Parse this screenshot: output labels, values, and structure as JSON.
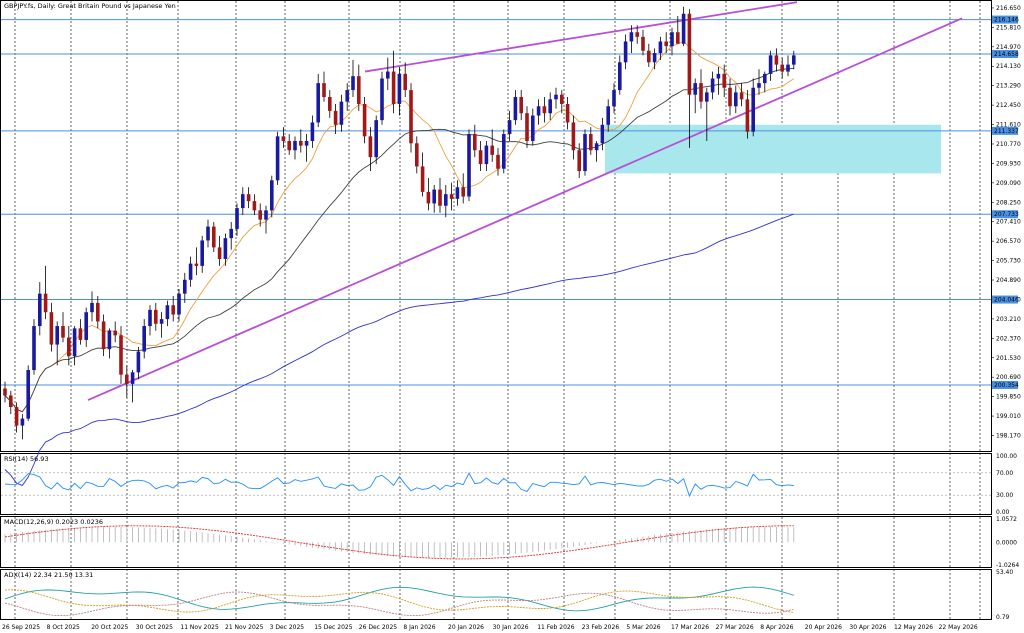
{
  "window": {
    "title": "GBPJPY.fs, Daily:  Great Britain Pound vs Japanese Yen"
  },
  "chart_data": [
    {
      "type": "candlestick",
      "title": "GBPJPY.fs, Daily:  Great Britain Pound vs Japanese Yen",
      "ylim": [
        197.5,
        216.95
      ],
      "y_ticks": [
        "216.650",
        "215.810",
        "214.970",
        "214.130",
        "213.290",
        "212.450",
        "211.610",
        "210.770",
        "209.930",
        "209.090",
        "208.250",
        "207.410",
        "206.570",
        "205.730",
        "204.890",
        "204.050",
        "203.210",
        "202.370",
        "201.530",
        "200.690",
        "199.850",
        "199.010",
        "198.170"
      ],
      "x_ticks": [
        "26 Sep 2025",
        "8 Oct 2025",
        "20 Oct 2025",
        "30 Oct 2025",
        "11 Nov 2025",
        "21 Nov 2025",
        "3 Dec 2025",
        "15 Dec 2025",
        "26 Dec 2025",
        "8 Jan 2026",
        "20 Jan 2026",
        "30 Jan 2026",
        "11 Feb 2026",
        "23 Feb 2026",
        "5 Mar 2026",
        "17 Mar 2026",
        "27 Mar 2026",
        "8 Apr 2026",
        "20 Apr 2026",
        "30 Apr 2026",
        "12 May 2026",
        "22 May 2026"
      ],
      "horizontal_levels": [
        {
          "value": 216.146,
          "label": "216.146"
        },
        {
          "value": 214.658,
          "label": "214.658"
        },
        {
          "value": 211.337,
          "label": "211.337"
        },
        {
          "value": 207.733,
          "label": "207.733"
        },
        {
          "value": 204.046,
          "label": "204.046"
        },
        {
          "value": 200.354,
          "label": "200.354"
        }
      ],
      "support_zone": {
        "from": 209.5,
        "to": 211.6,
        "color": "#a8e8ec"
      },
      "trendlines": [
        {
          "name": "rising wedge lower",
          "color": "#b84fd6"
        },
        {
          "name": "rising wedge upper",
          "color": "#b84fd6"
        }
      ],
      "moving_averages": [
        {
          "color": "#f0a040"
        },
        {
          "color": "#404040"
        },
        {
          "color": "#3030d0"
        }
      ],
      "bull_color": "#1a1aa0",
      "bear_color": "#a01818",
      "candles": [
        [
          200.2,
          200.5,
          199.6,
          199.9
        ],
        [
          199.9,
          200.1,
          199.1,
          199.4
        ],
        [
          199.4,
          199.6,
          198.3,
          198.6
        ],
        [
          198.6,
          199.1,
          198.0,
          198.9
        ],
        [
          198.9,
          201.2,
          198.8,
          201.0
        ],
        [
          201.0,
          203.2,
          200.8,
          202.9
        ],
        [
          202.9,
          204.8,
          202.5,
          204.3
        ],
        [
          204.3,
          205.5,
          203.2,
          203.5
        ],
        [
          203.5,
          203.9,
          201.8,
          202.1
        ],
        [
          202.1,
          203.1,
          201.2,
          202.9
        ],
        [
          202.9,
          203.5,
          202.2,
          202.4
        ],
        [
          202.4,
          202.9,
          201.2,
          201.6
        ],
        [
          201.6,
          202.9,
          201.2,
          202.8
        ],
        [
          202.8,
          203.2,
          202.1,
          202.3
        ],
        [
          202.3,
          203.7,
          202.0,
          203.5
        ],
        [
          203.5,
          204.4,
          203.1,
          203.9
        ],
        [
          203.9,
          204.2,
          202.8,
          203.1
        ],
        [
          203.1,
          203.4,
          201.6,
          201.9
        ],
        [
          201.9,
          202.8,
          201.5,
          202.7
        ],
        [
          202.7,
          203.1,
          202.2,
          202.5
        ],
        [
          202.5,
          202.9,
          200.4,
          200.8
        ],
        [
          200.8,
          201.2,
          199.8,
          200.4
        ],
        [
          200.4,
          201.0,
          199.6,
          200.9
        ],
        [
          200.9,
          202.0,
          200.6,
          201.8
        ],
        [
          201.8,
          203.2,
          201.5,
          202.9
        ],
        [
          202.9,
          203.8,
          202.5,
          203.6
        ],
        [
          203.6,
          203.9,
          202.7,
          203.0
        ],
        [
          203.0,
          203.5,
          202.4,
          203.2
        ],
        [
          203.2,
          204.0,
          202.9,
          203.8
        ],
        [
          203.8,
          204.2,
          203.1,
          203.4
        ],
        [
          203.4,
          204.5,
          203.1,
          204.3
        ],
        [
          204.3,
          205.2,
          203.9,
          204.9
        ],
        [
          204.9,
          205.9,
          204.6,
          205.6
        ],
        [
          205.6,
          206.3,
          205.1,
          205.5
        ],
        [
          205.5,
          206.8,
          205.2,
          206.6
        ],
        [
          206.6,
          207.5,
          206.3,
          207.2
        ],
        [
          207.2,
          207.4,
          206.1,
          206.3
        ],
        [
          206.3,
          206.8,
          205.5,
          205.8
        ],
        [
          205.8,
          206.9,
          205.5,
          206.7
        ],
        [
          206.7,
          207.4,
          206.2,
          207.1
        ],
        [
          207.1,
          208.2,
          206.8,
          208.0
        ],
        [
          208.0,
          208.9,
          207.7,
          208.6
        ],
        [
          208.6,
          208.9,
          208.0,
          208.3
        ],
        [
          208.3,
          208.6,
          207.7,
          207.9
        ],
        [
          207.9,
          208.2,
          207.2,
          207.5
        ],
        [
          207.5,
          208.1,
          206.9,
          207.9
        ],
        [
          207.9,
          209.4,
          207.6,
          209.2
        ],
        [
          209.2,
          211.3,
          209.0,
          211.1
        ],
        [
          211.1,
          211.5,
          210.6,
          210.9
        ],
        [
          210.9,
          211.2,
          210.3,
          210.5
        ],
        [
          210.5,
          211.1,
          210.1,
          210.9
        ],
        [
          210.9,
          211.4,
          210.4,
          210.7
        ],
        [
          210.7,
          211.2,
          210.0,
          210.9
        ],
        [
          210.9,
          212.0,
          210.6,
          211.7
        ],
        [
          211.7,
          213.8,
          211.5,
          213.4
        ],
        [
          213.4,
          213.9,
          212.6,
          212.8
        ],
        [
          212.8,
          213.1,
          211.9,
          212.2
        ],
        [
          212.2,
          212.5,
          211.2,
          211.6
        ],
        [
          211.6,
          212.9,
          211.3,
          212.6
        ],
        [
          212.6,
          213.4,
          212.2,
          213.1
        ],
        [
          213.1,
          214.4,
          212.8,
          213.7
        ],
        [
          213.7,
          214.2,
          212.2,
          212.5
        ],
        [
          212.5,
          212.8,
          210.8,
          211.1
        ],
        [
          211.1,
          211.5,
          209.6,
          210.2
        ],
        [
          210.2,
          212.0,
          209.9,
          211.8
        ],
        [
          211.8,
          213.9,
          211.6,
          213.6
        ],
        [
          213.6,
          214.5,
          213.1,
          213.9
        ],
        [
          213.9,
          214.8,
          212.1,
          212.5
        ],
        [
          212.5,
          214.1,
          212.0,
          213.8
        ],
        [
          213.8,
          214.3,
          212.8,
          213.1
        ],
        [
          213.1,
          213.4,
          210.4,
          210.8
        ],
        [
          210.8,
          211.1,
          209.5,
          209.8
        ],
        [
          209.8,
          210.4,
          208.5,
          208.7
        ],
        [
          208.7,
          209.3,
          207.9,
          208.2
        ],
        [
          208.2,
          209.0,
          207.8,
          208.8
        ],
        [
          208.8,
          209.3,
          207.8,
          208.1
        ],
        [
          208.1,
          209.0,
          207.6,
          208.6
        ],
        [
          208.6,
          209.1,
          207.9,
          208.4
        ],
        [
          208.4,
          209.2,
          208.1,
          208.9
        ],
        [
          208.9,
          209.5,
          208.2,
          208.5
        ],
        [
          208.5,
          211.4,
          208.3,
          211.2
        ],
        [
          211.2,
          211.6,
          210.2,
          210.5
        ],
        [
          210.5,
          210.9,
          209.6,
          209.9
        ],
        [
          209.9,
          210.9,
          209.6,
          210.7
        ],
        [
          210.7,
          211.4,
          210.0,
          210.3
        ],
        [
          210.3,
          210.6,
          209.4,
          209.7
        ],
        [
          209.7,
          211.4,
          209.5,
          211.2
        ],
        [
          211.2,
          212.2,
          210.9,
          211.8
        ],
        [
          211.8,
          213.1,
          211.6,
          212.8
        ],
        [
          212.8,
          213.1,
          211.8,
          212.1
        ],
        [
          212.1,
          212.4,
          210.6,
          210.9
        ],
        [
          210.9,
          212.3,
          210.7,
          212.0
        ],
        [
          212.0,
          212.7,
          211.6,
          212.4
        ],
        [
          212.4,
          212.8,
          211.7,
          212.1
        ],
        [
          212.1,
          213.0,
          211.8,
          212.7
        ],
        [
          212.7,
          213.2,
          212.3,
          212.9
        ],
        [
          212.9,
          213.1,
          212.1,
          212.5
        ],
        [
          212.5,
          212.8,
          211.4,
          211.7
        ],
        [
          211.7,
          212.0,
          210.1,
          210.5
        ],
        [
          210.5,
          210.8,
          209.3,
          209.6
        ],
        [
          209.6,
          211.4,
          209.4,
          211.2
        ],
        [
          211.2,
          211.5,
          210.3,
          210.5
        ],
        [
          210.5,
          210.9,
          210.0,
          210.8
        ],
        [
          210.8,
          211.9,
          210.5,
          211.6
        ],
        [
          211.6,
          212.7,
          211.3,
          212.4
        ],
        [
          212.4,
          213.4,
          212.1,
          213.1
        ],
        [
          213.1,
          214.6,
          212.9,
          214.3
        ],
        [
          214.3,
          215.5,
          214.0,
          215.2
        ],
        [
          215.2,
          215.9,
          214.7,
          215.6
        ],
        [
          215.6,
          215.9,
          215.1,
          215.4
        ],
        [
          215.4,
          215.7,
          214.6,
          214.8
        ],
        [
          214.8,
          215.1,
          214.1,
          214.3
        ],
        [
          214.3,
          214.9,
          214.0,
          214.7
        ],
        [
          214.7,
          215.4,
          214.4,
          215.2
        ],
        [
          215.2,
          215.6,
          214.7,
          215.0
        ],
        [
          215.0,
          215.8,
          214.6,
          215.6
        ],
        [
          215.6,
          216.3,
          215.2,
          215.1
        ],
        [
          215.1,
          216.7,
          215.0,
          216.4
        ],
        [
          216.4,
          216.6,
          210.6,
          212.9
        ],
        [
          212.9,
          213.6,
          212.1,
          213.4
        ],
        [
          213.4,
          214.0,
          212.3,
          212.6
        ],
        [
          212.6,
          213.2,
          210.9,
          213.0
        ],
        [
          213.0,
          213.9,
          212.7,
          213.6
        ],
        [
          213.6,
          214.1,
          212.9,
          213.8
        ],
        [
          213.8,
          214.2,
          212.8,
          213.2
        ],
        [
          213.2,
          213.6,
          212.0,
          212.4
        ],
        [
          212.4,
          213.3,
          212.1,
          213.0
        ],
        [
          213.0,
          213.4,
          212.4,
          212.7
        ],
        [
          212.7,
          213.1,
          211.0,
          211.3
        ],
        [
          211.3,
          213.6,
          211.1,
          213.2
        ],
        [
          213.2,
          214.0,
          212.9,
          213.4
        ],
        [
          213.4,
          213.9,
          213.0,
          213.8
        ],
        [
          213.8,
          214.8,
          213.5,
          214.6
        ],
        [
          214.6,
          214.9,
          213.9,
          214.2
        ],
        [
          214.2,
          214.5,
          213.6,
          213.9
        ],
        [
          213.9,
          214.6,
          213.7,
          214.2
        ],
        [
          214.2,
          214.8,
          214.0,
          214.6
        ]
      ]
    },
    {
      "type": "line",
      "title": "RSI(14) 56.93",
      "ylim": [
        0,
        100
      ],
      "y_ticks": [
        "100.00",
        "70.00",
        "30.00",
        "0.00"
      ],
      "levels": [
        70,
        30
      ]
    },
    {
      "type": "bar",
      "title": "MACD(12,26,9) 0.2023 0.0236",
      "ylim": [
        -1.0264,
        1.0572
      ],
      "y_ticks": [
        "1.0572",
        "0.0000",
        "-1.0264"
      ]
    },
    {
      "type": "line",
      "title": "ADX(14) 22.34 21.50 13.31",
      "ylim": [
        0.79,
        53.4
      ],
      "y_ticks": [
        "53.40",
        "0.79"
      ]
    }
  ]
}
